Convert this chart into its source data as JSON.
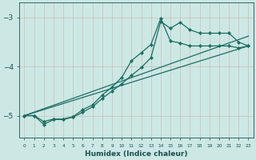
{
  "xlabel": "Humidex (Indice chaleur)",
  "background_color": "#cce8e4",
  "grid_color": "#99cccc",
  "line_color": "#1a6e64",
  "xlim": [
    -0.5,
    23.5
  ],
  "ylim": [
    -5.45,
    -2.7
  ],
  "yticks": [
    -5,
    -4,
    -3
  ],
  "xticks": [
    0,
    1,
    2,
    3,
    4,
    5,
    6,
    7,
    8,
    9,
    10,
    11,
    12,
    13,
    14,
    15,
    16,
    17,
    18,
    19,
    20,
    21,
    22,
    23
  ],
  "line1_x": [
    0,
    1,
    2,
    3,
    4,
    5,
    6,
    7,
    8,
    9,
    10,
    11,
    12,
    13,
    14,
    15,
    16,
    17,
    18,
    19,
    20,
    21,
    22,
    23
  ],
  "line1_y": [
    -5.0,
    -5.0,
    -5.18,
    -5.08,
    -5.08,
    -5.03,
    -4.93,
    -4.82,
    -4.65,
    -4.5,
    -4.35,
    -4.18,
    -4.02,
    -3.82,
    -3.08,
    -3.22,
    -3.1,
    -3.25,
    -3.32,
    -3.32,
    -3.32,
    -3.32,
    -3.5,
    -3.58
  ],
  "line2_x": [
    0,
    1,
    2,
    3,
    4,
    5,
    6,
    7,
    8,
    9,
    10,
    11,
    12,
    13,
    14,
    15,
    16,
    17,
    18,
    19,
    20,
    21,
    22,
    23
  ],
  "line2_y": [
    -5.0,
    -5.0,
    -5.12,
    -5.07,
    -5.07,
    -5.02,
    -4.88,
    -4.78,
    -4.58,
    -4.42,
    -4.22,
    -3.88,
    -3.72,
    -3.55,
    -3.02,
    -3.48,
    -3.52,
    -3.58,
    -3.58,
    -3.58,
    -3.58,
    -3.58,
    -3.62,
    -3.58
  ],
  "line3_x": [
    0,
    23
  ],
  "line3_y": [
    -5.0,
    -3.58
  ],
  "line4_x": [
    0,
    23
  ],
  "line4_y": [
    -5.0,
    -3.38
  ]
}
